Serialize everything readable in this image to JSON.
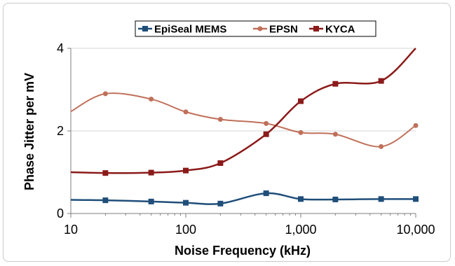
{
  "chart_data": {
    "type": "line",
    "xscale": "log",
    "xlim": [
      10,
      10000
    ],
    "ylim": [
      0,
      4
    ],
    "xticks": [
      10,
      100,
      1000,
      10000
    ],
    "xtick_labels": [
      "10",
      "100",
      "1,000",
      "10,000"
    ],
    "yticks": [
      0,
      2,
      4
    ],
    "ytick_labels": [
      "0",
      "2",
      "4"
    ],
    "xlabel": "Noise Frequency (kHz)",
    "ylabel": "Phase Jitter per mV",
    "legend_position": "top-center",
    "grid": "horizontal",
    "series": [
      {
        "name": "EpiSeal MEMS",
        "color": "#1f4e79",
        "marker": "square",
        "x": [
          20,
          50,
          100,
          200,
          500,
          1000,
          2000,
          5000,
          10000
        ],
        "y": [
          0.32,
          0.29,
          0.26,
          0.24,
          0.49,
          0.35,
          0.34,
          0.35,
          0.35
        ],
        "line_start_y": 0.33
      },
      {
        "name": "EPSN",
        "color": "#c0705a",
        "marker": "circle",
        "x": [
          20,
          50,
          100,
          200,
          500,
          1000,
          2000,
          5000,
          10000
        ],
        "y": [
          2.9,
          2.77,
          2.46,
          2.28,
          2.18,
          1.96,
          1.92,
          1.62,
          2.13
        ],
        "line_start_y": 2.47
      },
      {
        "name": "KYCA",
        "color": "#8b1a1a",
        "marker": "square",
        "x": [
          20,
          50,
          100,
          200,
          500,
          1000,
          2000,
          5000,
          10000
        ],
        "y": [
          0.98,
          0.99,
          1.04,
          1.22,
          1.92,
          2.72,
          3.14,
          3.21,
          4.0
        ],
        "line_start_y": 1.0
      }
    ]
  }
}
